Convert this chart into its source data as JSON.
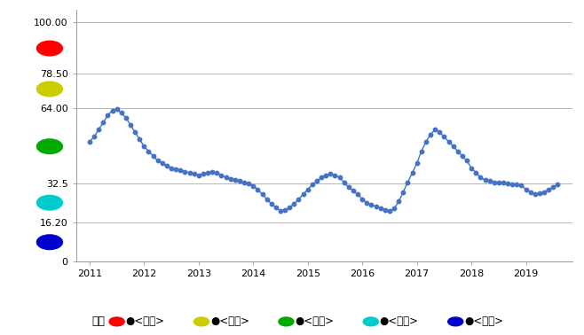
{
  "yticks": [
    0,
    16.2,
    32.5,
    64.0,
    78.5,
    100.0
  ],
  "ytick_labels": [
    "0",
    "16.20",
    "32.5",
    "64.00",
    "78.50",
    "100.00"
  ],
  "ylim": [
    0,
    105
  ],
  "xlim": [
    2010.75,
    2019.85
  ],
  "line_color": "#4472C4",
  "dot_color": "#4472C4",
  "background_color": "#ffffff",
  "legend_note": "注：",
  "legend_items": [
    {
      "label": "●<过热>",
      "color": "#FF0000"
    },
    {
      "label": "●<偏热>",
      "color": "#CCCC00"
    },
    {
      "label": "●<正常>",
      "color": "#00AA00"
    },
    {
      "label": "●<偏冷>",
      "color": "#00CCCC"
    },
    {
      "label": "●<过冷>",
      "color": "#0000CC"
    }
  ],
  "zone_circles": [
    {
      "y_data": 89,
      "color": "#FF0000"
    },
    {
      "y_data": 72,
      "color": "#CCCC00"
    },
    {
      "y_data": 48,
      "color": "#00AA00"
    },
    {
      "y_data": 24.5,
      "color": "#00CCCC"
    },
    {
      "y_data": 8,
      "color": "#0000CC"
    }
  ],
  "data_x": [
    2011.0,
    2011.083,
    2011.167,
    2011.25,
    2011.333,
    2011.417,
    2011.5,
    2011.583,
    2011.667,
    2011.75,
    2011.833,
    2011.917,
    2012.0,
    2012.083,
    2012.167,
    2012.25,
    2012.333,
    2012.417,
    2012.5,
    2012.583,
    2012.667,
    2012.75,
    2012.833,
    2012.917,
    2013.0,
    2013.083,
    2013.167,
    2013.25,
    2013.333,
    2013.417,
    2013.5,
    2013.583,
    2013.667,
    2013.75,
    2013.833,
    2013.917,
    2014.0,
    2014.083,
    2014.167,
    2014.25,
    2014.333,
    2014.417,
    2014.5,
    2014.583,
    2014.667,
    2014.75,
    2014.833,
    2014.917,
    2015.0,
    2015.083,
    2015.167,
    2015.25,
    2015.333,
    2015.417,
    2015.5,
    2015.583,
    2015.667,
    2015.75,
    2015.833,
    2015.917,
    2016.0,
    2016.083,
    2016.167,
    2016.25,
    2016.333,
    2016.417,
    2016.5,
    2016.583,
    2016.667,
    2016.75,
    2016.833,
    2016.917,
    2017.0,
    2017.083,
    2017.167,
    2017.25,
    2017.333,
    2017.417,
    2017.5,
    2017.583,
    2017.667,
    2017.75,
    2017.833,
    2017.917,
    2018.0,
    2018.083,
    2018.167,
    2018.25,
    2018.333,
    2018.417,
    2018.5,
    2018.583,
    2018.667,
    2018.75,
    2018.833,
    2018.917,
    2019.0,
    2019.083,
    2019.167,
    2019.25,
    2019.333,
    2019.417,
    2019.5,
    2019.583
  ],
  "data_y": [
    50,
    52,
    55,
    58,
    61,
    63,
    63.5,
    62,
    60,
    57,
    54,
    51,
    48,
    46,
    44,
    42,
    41,
    40,
    39,
    38.5,
    38,
    37.5,
    37,
    36.5,
    36,
    36.5,
    37,
    37.5,
    37,
    36,
    35,
    34.5,
    34,
    33.5,
    33,
    32.5,
    31.5,
    30,
    28,
    26,
    24,
    22.5,
    21,
    21.5,
    22.5,
    24,
    26,
    28,
    30,
    32,
    33.5,
    35,
    36,
    36.5,
    36,
    35,
    33,
    31,
    29.5,
    28,
    26,
    24.5,
    23.5,
    23,
    22,
    21.5,
    21,
    22,
    25,
    29,
    33,
    37,
    41,
    46,
    50,
    53,
    55,
    54,
    52,
    50,
    48,
    46,
    44,
    42,
    39,
    37,
    35,
    34,
    33.5,
    33,
    33,
    32.8,
    32.5,
    32.3,
    32,
    31.8,
    30,
    29,
    28,
    28.5,
    29,
    30,
    31,
    32
  ]
}
